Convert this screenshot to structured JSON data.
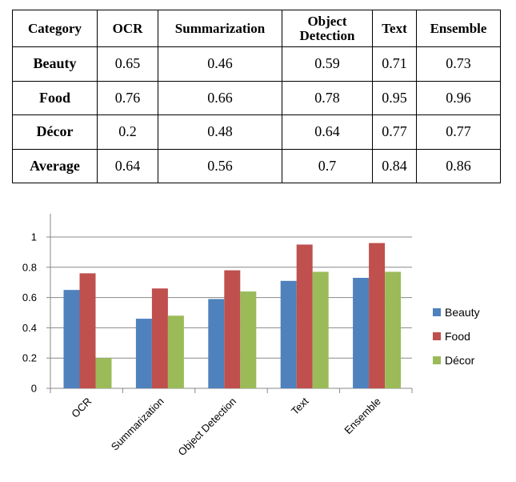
{
  "table": {
    "headers": [
      "Category",
      "OCR",
      "Summarization",
      "Object\nDetection",
      "Text",
      "Ensemble"
    ],
    "rows": [
      {
        "label": "Beauty",
        "values": [
          "0.65",
          "0.46",
          "0.59",
          "0.71",
          "0.73"
        ]
      },
      {
        "label": "Food",
        "values": [
          "0.76",
          "0.66",
          "0.78",
          "0.95",
          "0.96"
        ]
      },
      {
        "label": "Décor",
        "values": [
          "0.2",
          "0.48",
          "0.64",
          "0.77",
          "0.77"
        ]
      },
      {
        "label": "Average",
        "values": [
          "0.64",
          "0.56",
          "0.7",
          "0.84",
          "0.86"
        ]
      }
    ]
  },
  "chart_data": {
    "type": "bar",
    "categories": [
      "OCR",
      "Summarization",
      "Object Detection",
      "Text",
      "Ensemble"
    ],
    "series": [
      {
        "name": "Beauty",
        "color": "#4F81BD",
        "values": [
          0.65,
          0.46,
          0.59,
          0.71,
          0.73
        ]
      },
      {
        "name": "Food",
        "color": "#C0504D",
        "values": [
          0.76,
          0.66,
          0.78,
          0.95,
          0.96
        ]
      },
      {
        "name": "Décor",
        "color": "#9BBB59",
        "values": [
          0.2,
          0.48,
          0.64,
          0.77,
          0.77
        ]
      }
    ],
    "ylim": [
      0,
      1
    ],
    "yticks": [
      0,
      0.2,
      0.4,
      0.6,
      0.8,
      1
    ],
    "ytick_labels": [
      "0",
      "0.2",
      "0.4",
      "0.6",
      "0.8",
      "1"
    ],
    "grid": true,
    "legend_position": "right",
    "title": "",
    "xlabel": "",
    "ylabel": ""
  }
}
